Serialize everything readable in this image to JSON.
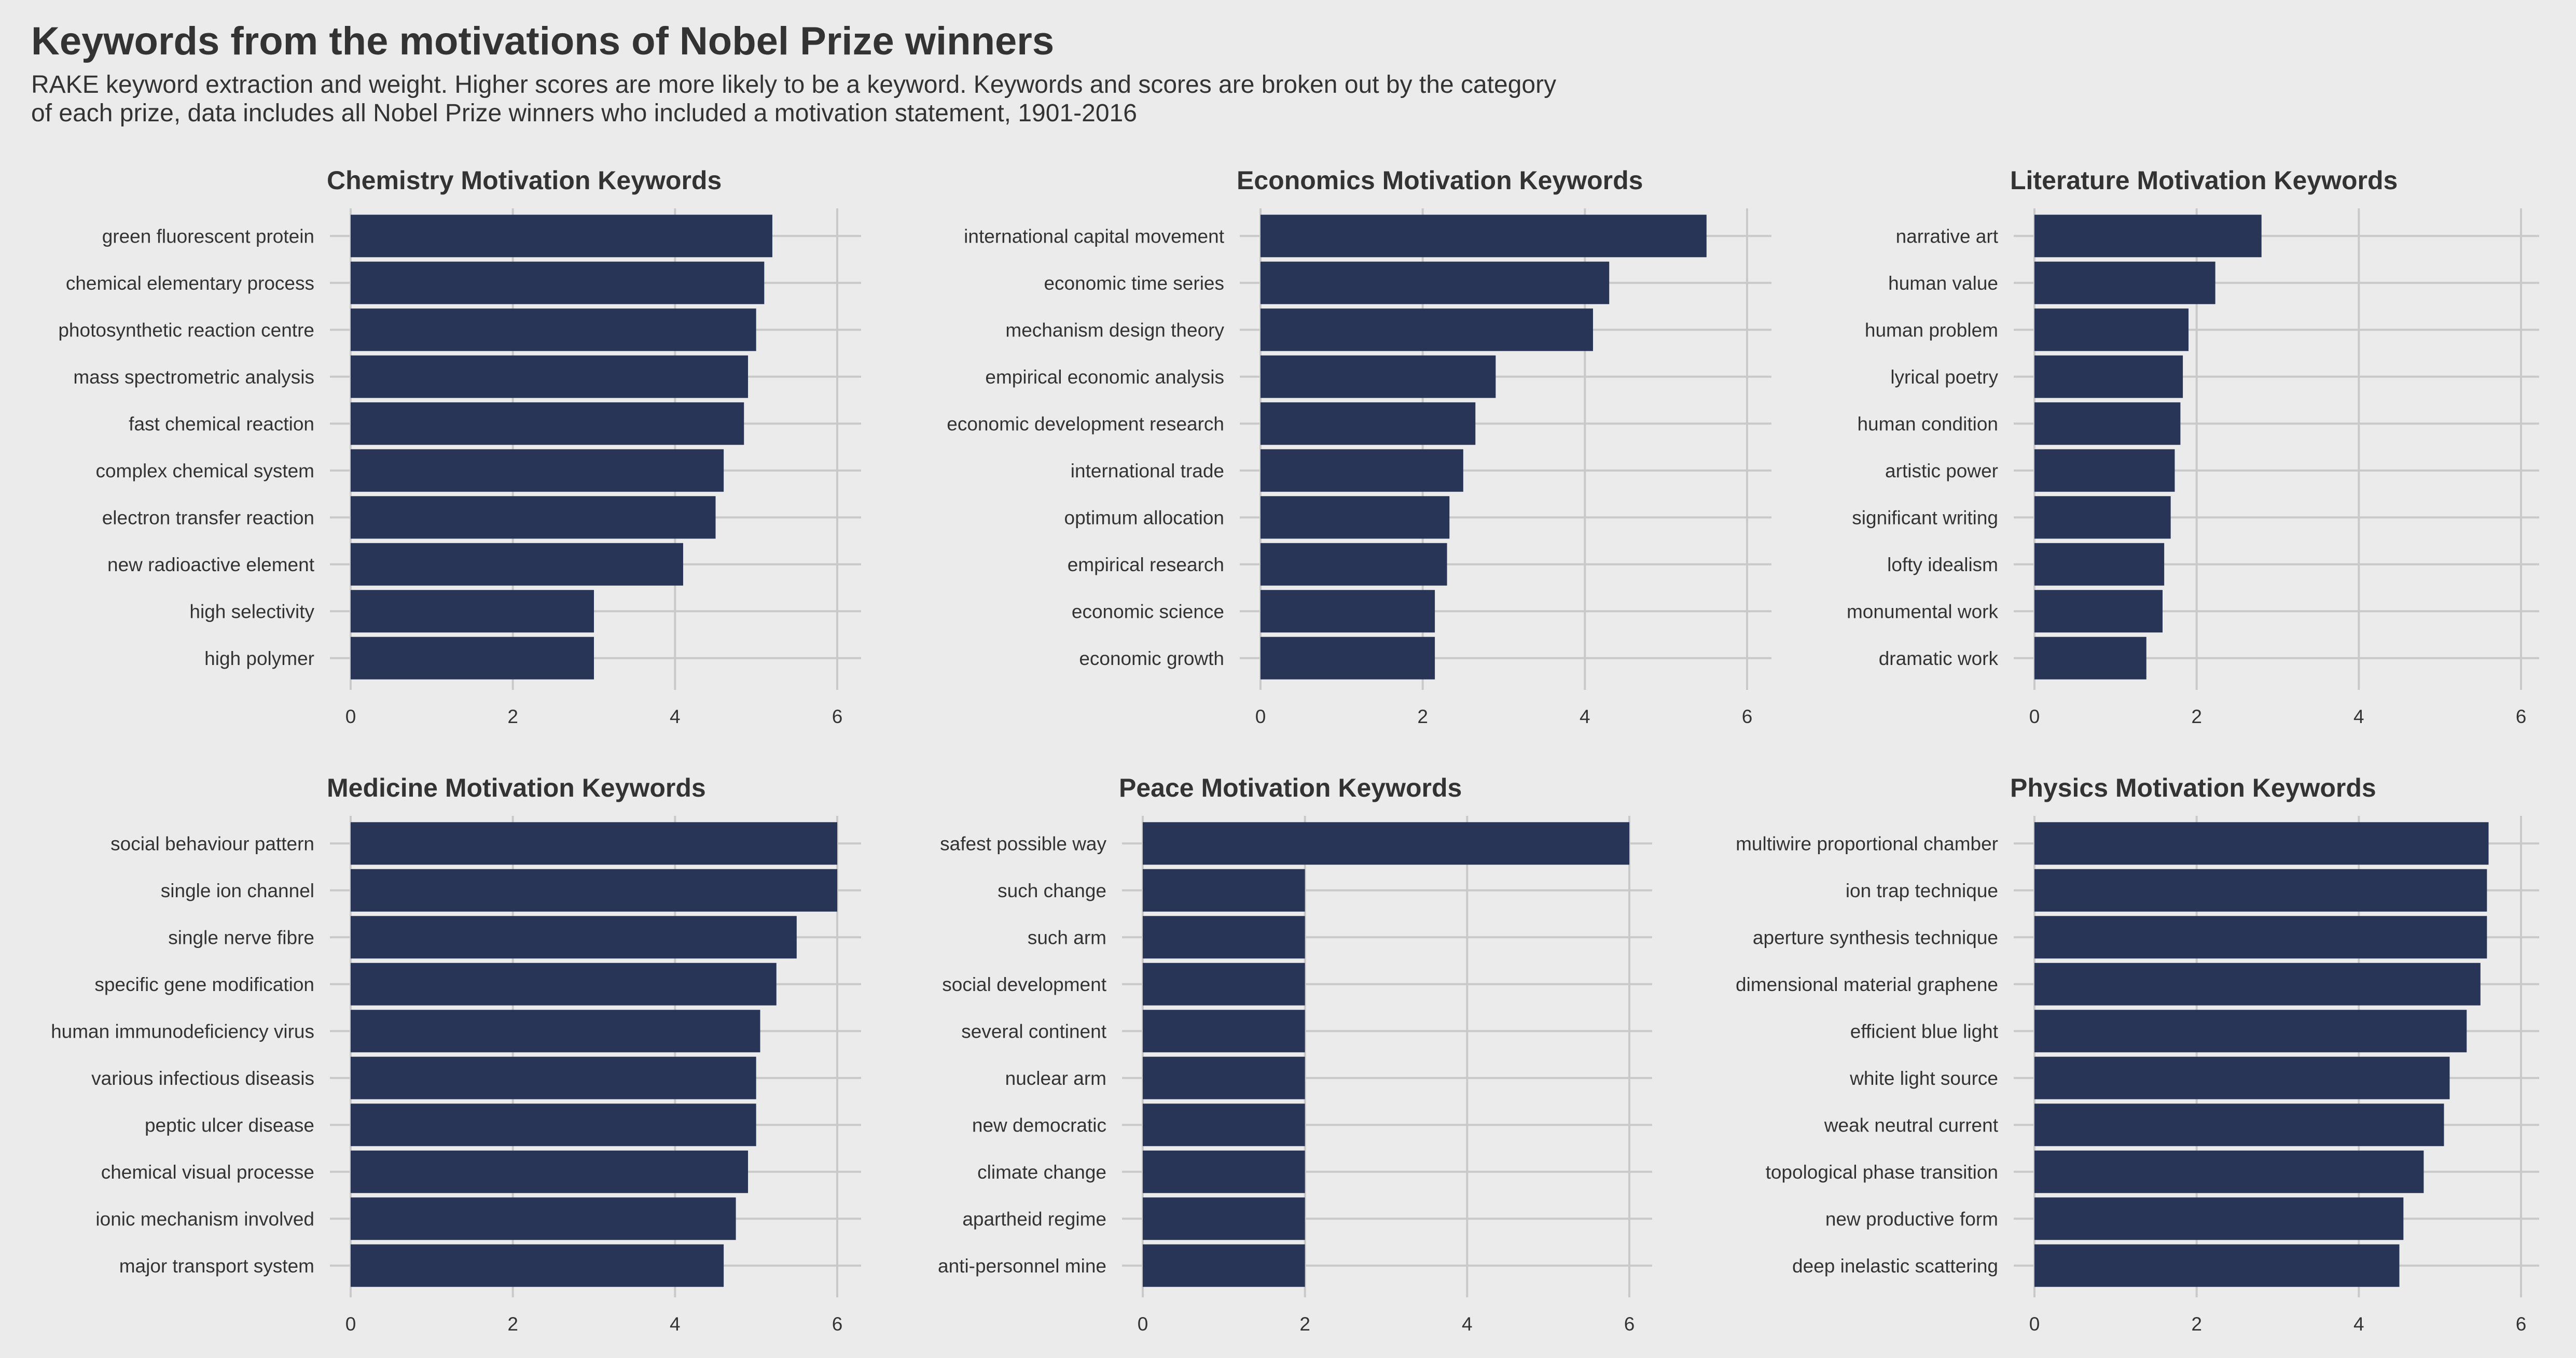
{
  "title": "Keywords from the motivations of Nobel Prize winners",
  "subtitle": "RAKE keyword extraction and weight. Higher scores are more likely to be a keyword. Keywords and scores are broken out by the category\nof each prize, data includes all Nobel Prize winners who included a motivation statement, 1901-2016",
  "colors": {
    "bar": "#283556",
    "background": "#ebebeb",
    "grid": "#c9c9c9",
    "text": "#333333"
  },
  "chart_data": [
    {
      "type": "bar",
      "orientation": "horizontal",
      "title": "Chemistry Motivation Keywords",
      "categories": [
        "green fluorescent protein",
        "chemical elementary process",
        "photosynthetic reaction centre",
        "mass spectrometric analysis",
        "fast chemical reaction",
        "complex chemical system",
        "electron transfer reaction",
        "new radioactive element",
        "high selectivity",
        "high polymer"
      ],
      "values": [
        5.2,
        5.1,
        5.0,
        4.9,
        4.85,
        4.6,
        4.5,
        4.1,
        3.0,
        3.0
      ],
      "xlim": [
        0,
        6
      ],
      "xticks": [
        0,
        2,
        4,
        6
      ],
      "grid": true
    },
    {
      "type": "bar",
      "orientation": "horizontal",
      "title": "Economics Motivation Keywords",
      "categories": [
        "international capital movement",
        "economic time series",
        "mechanism design theory",
        "empirical economic analysis",
        "economic development research",
        "international trade",
        "optimum allocation",
        "empirical research",
        "economic science",
        "economic growth"
      ],
      "values": [
        5.5,
        4.3,
        4.1,
        2.9,
        2.65,
        2.5,
        2.33,
        2.3,
        2.15,
        2.15
      ],
      "xlim": [
        0,
        6
      ],
      "xticks": [
        0,
        2,
        4,
        6
      ],
      "grid": true
    },
    {
      "type": "bar",
      "orientation": "horizontal",
      "title": "Literature Motivation Keywords",
      "categories": [
        "narrative art",
        "human value",
        "human problem",
        "lyrical poetry",
        "human condition",
        "artistic power",
        "significant writing",
        "lofty idealism",
        "monumental work",
        "dramatic work"
      ],
      "values": [
        2.8,
        2.23,
        1.9,
        1.83,
        1.8,
        1.73,
        1.68,
        1.6,
        1.58,
        1.38
      ],
      "xlim": [
        0,
        6
      ],
      "xticks": [
        0,
        2,
        4,
        6
      ],
      "grid": true
    },
    {
      "type": "bar",
      "orientation": "horizontal",
      "title": "Medicine Motivation Keywords",
      "categories": [
        "social behaviour pattern",
        "single ion channel",
        "single nerve fibre",
        "specific gene modification",
        "human immunodeficiency virus",
        "various infectious diseasis",
        "peptic ulcer disease",
        "chemical visual processe",
        "ionic mechanism involved",
        "major transport system"
      ],
      "values": [
        6.0,
        6.0,
        5.5,
        5.25,
        5.05,
        5.0,
        5.0,
        4.9,
        4.75,
        4.6
      ],
      "xlim": [
        0,
        6
      ],
      "xticks": [
        0,
        2,
        4,
        6
      ],
      "grid": true
    },
    {
      "type": "bar",
      "orientation": "horizontal",
      "title": "Peace Motivation Keywords",
      "categories": [
        "safest possible way",
        "such change",
        "such arm",
        "social development",
        "several continent",
        "nuclear arm",
        "new democratic",
        "climate change",
        "apartheid regime",
        "anti-personnel mine"
      ],
      "values": [
        6.0,
        2.0,
        2.0,
        2.0,
        2.0,
        2.0,
        2.0,
        2.0,
        2.0,
        2.0
      ],
      "xlim": [
        0,
        6
      ],
      "xticks": [
        0,
        2,
        4,
        6
      ],
      "grid": true
    },
    {
      "type": "bar",
      "orientation": "horizontal",
      "title": "Physics Motivation Keywords",
      "categories": [
        "multiwire proportional chamber",
        "ion trap technique",
        "aperture synthesis technique",
        "dimensional material graphene",
        "efficient blue light",
        "white light source",
        "weak neutral current",
        "topological phase transition",
        "new productive form",
        "deep inelastic scattering"
      ],
      "values": [
        5.6,
        5.58,
        5.58,
        5.5,
        5.33,
        5.12,
        5.05,
        4.8,
        4.55,
        4.5
      ],
      "xlim": [
        0,
        6
      ],
      "xticks": [
        0,
        2,
        4,
        6
      ],
      "grid": true
    }
  ]
}
